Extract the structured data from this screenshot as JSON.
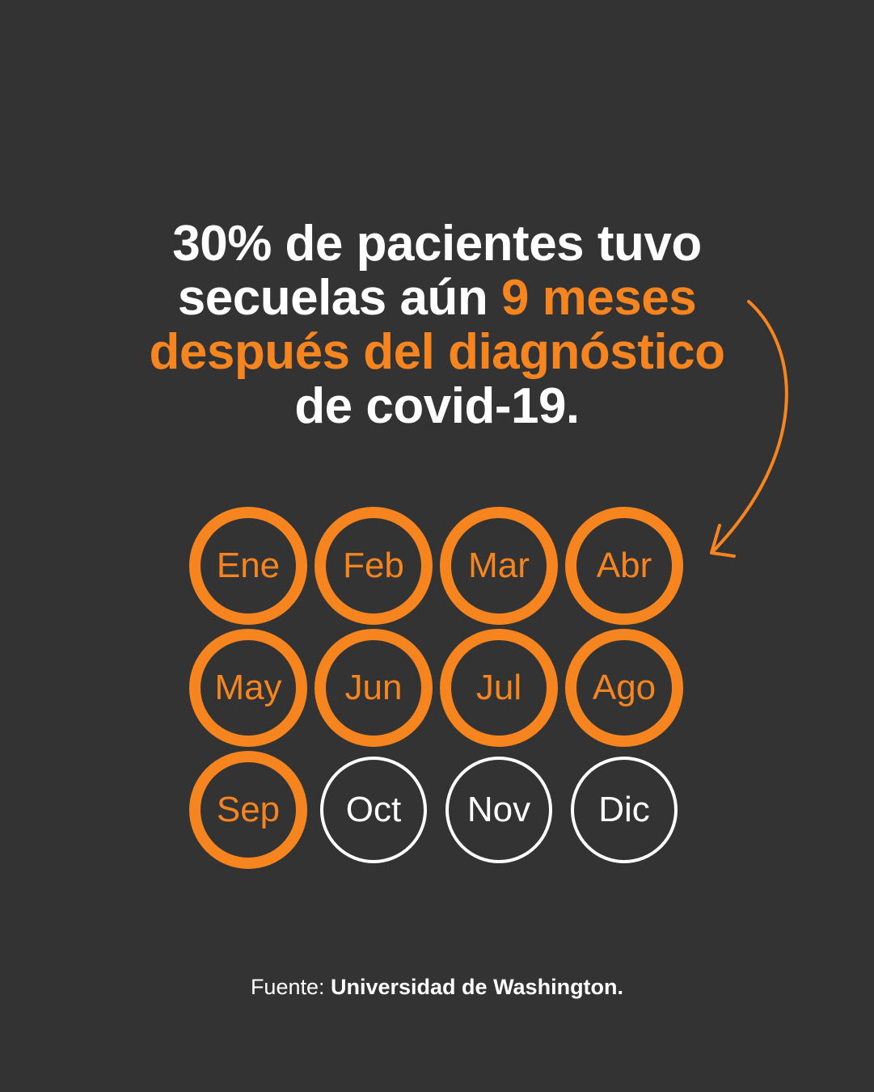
{
  "headline": {
    "line1": "30% de pacientes tuvo",
    "line2_white": "secuelas aún ",
    "line2_accent": "9 meses",
    "line3_accent": "después del diagnóstico",
    "line4": "de covid-19."
  },
  "colors": {
    "background": "#333333",
    "accent": "#F7851F",
    "text": "#FFFFFF"
  },
  "months": [
    {
      "label": "Ene",
      "highlighted": true
    },
    {
      "label": "Feb",
      "highlighted": true
    },
    {
      "label": "Mar",
      "highlighted": true
    },
    {
      "label": "Abr",
      "highlighted": true
    },
    {
      "label": "May",
      "highlighted": true
    },
    {
      "label": "Jun",
      "highlighted": true
    },
    {
      "label": "Jul",
      "highlighted": true
    },
    {
      "label": "Ago",
      "highlighted": true
    },
    {
      "label": "Sep",
      "highlighted": true
    },
    {
      "label": "Oct",
      "highlighted": false
    },
    {
      "label": "Nov",
      "highlighted": false
    },
    {
      "label": "Dic",
      "highlighted": false
    }
  ],
  "source": {
    "prefix": "Fuente: ",
    "name": "Universidad de Washington."
  }
}
